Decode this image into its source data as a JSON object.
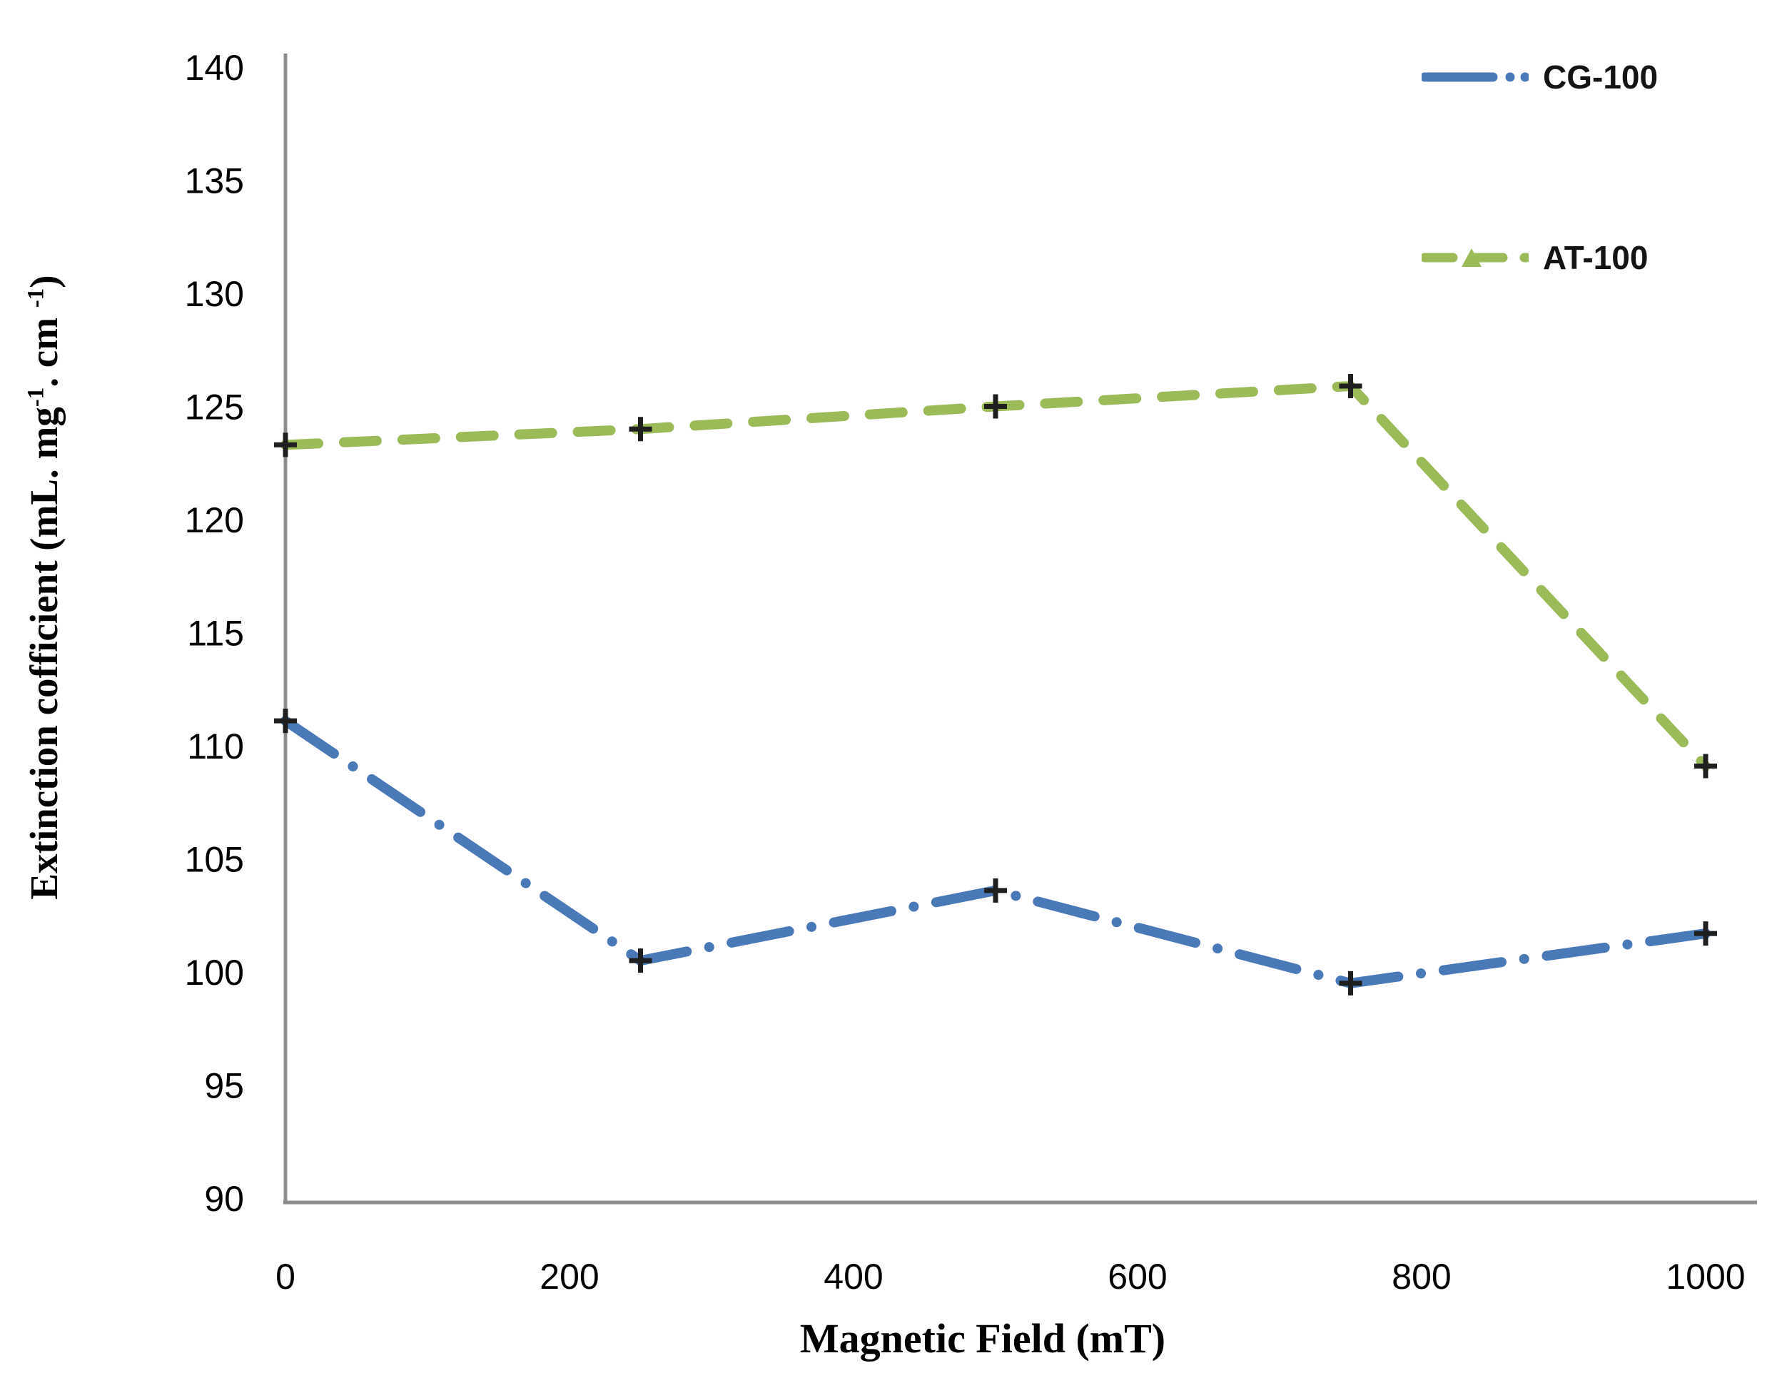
{
  "chart_data": {
    "type": "line",
    "title": "",
    "xlabel": "Magnetic Field (mT)",
    "ylabel": "Extinction cofficient (mL. mg-1. cm -1)",
    "ylabel_segments": {
      "pre": "Extinction cofficient (mL. mg",
      "sup1": "-1",
      "mid": ". cm ",
      "sup2": "-1",
      "post": ")"
    },
    "xlim": [
      0,
      1000
    ],
    "ylim": [
      90,
      140
    ],
    "xticks": [
      0,
      200,
      400,
      600,
      800,
      1000
    ],
    "yticks": [
      140,
      135,
      130,
      125,
      120,
      115,
      110,
      105,
      100,
      95,
      90
    ],
    "grid": false,
    "legend_position": "top-right",
    "marker": "plus",
    "marker_color": "#1f1f1f",
    "axis_color": "#8c8c8c",
    "series": [
      {
        "name": "CG-100",
        "color": "#4a79b8",
        "line_style": "dash-dot",
        "x": [
          0,
          250,
          500,
          750,
          1000
        ],
        "values": [
          111.1,
          100.5,
          103.6,
          99.5,
          101.7
        ]
      },
      {
        "name": "AT-100",
        "color": "#9bbb59",
        "line_style": "dash",
        "x": [
          0,
          250,
          500,
          750,
          1000
        ],
        "values": [
          123.3,
          124.0,
          125.0,
          125.9,
          109.1
        ]
      }
    ]
  }
}
